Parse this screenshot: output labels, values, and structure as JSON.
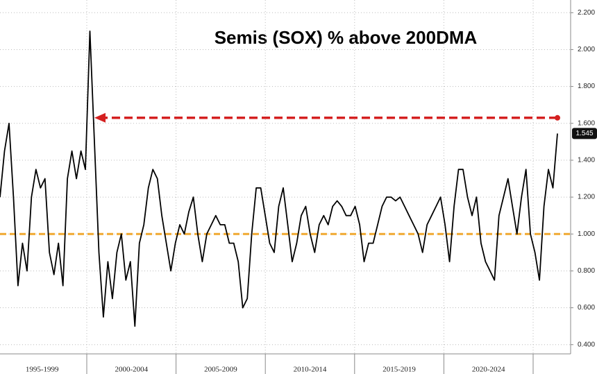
{
  "chart_data": {
    "type": "line",
    "title": "Semis (SOX) % above 200DMA",
    "period_labels": [
      "1995-1999",
      "2000-2004",
      "2005-2009",
      "2010-2014",
      "2015-2019",
      "2020-2024"
    ],
    "series": [
      {
        "color": "#000000",
        "values": [
          1.2,
          1.45,
          1.6,
          1.2,
          0.72,
          0.95,
          0.8,
          1.2,
          1.35,
          1.25,
          1.3,
          0.9,
          0.78,
          0.95,
          0.72,
          1.3,
          1.45,
          1.3,
          1.45,
          1.35,
          2.1,
          1.5,
          0.9,
          0.55,
          0.85,
          0.65,
          0.9,
          1.0,
          0.75,
          0.85,
          0.5,
          0.95,
          1.05,
          1.25,
          1.35,
          1.3,
          1.1,
          0.95,
          0.8,
          0.95,
          1.05,
          1.0,
          1.12,
          1.2,
          1.0,
          0.85,
          1.0,
          1.05,
          1.1,
          1.05,
          1.05,
          0.95,
          0.95,
          0.85,
          0.6,
          0.65,
          1.0,
          1.25,
          1.25,
          1.1,
          0.95,
          0.9,
          1.15,
          1.25,
          1.05,
          0.85,
          0.95,
          1.1,
          1.15,
          1.0,
          0.9,
          1.05,
          1.1,
          1.05,
          1.15,
          1.18,
          1.15,
          1.1,
          1.1,
          1.15,
          1.05,
          0.85,
          0.95,
          0.95,
          1.05,
          1.15,
          1.2,
          1.2,
          1.18,
          1.2,
          1.15,
          1.1,
          1.05,
          1.0,
          0.9,
          1.05,
          1.1,
          1.15,
          1.2,
          1.05,
          0.85,
          1.15,
          1.35,
          1.35,
          1.2,
          1.1,
          1.2,
          0.95,
          0.85,
          0.8,
          0.75,
          1.1,
          1.2,
          1.3,
          1.15,
          1.0,
          1.2,
          1.35,
          1.0,
          0.9,
          0.75,
          1.15,
          1.35,
          1.25,
          1.545
        ],
        "value_labels": {
          "124": "1.545"
        }
      }
    ],
    "reference_line": {
      "value": 1.0,
      "color": "#f0a830"
    },
    "arrow": {
      "value": 1.63,
      "color": "#d42020"
    },
    "ylim": [
      0.35,
      2.25
    ],
    "yticks": [
      {
        "value": 0.4,
        "label": "0.400"
      },
      {
        "value": 0.6,
        "label": "0.600"
      },
      {
        "value": 0.8,
        "label": "0.800"
      },
      {
        "value": 1.0,
        "label": "1.000"
      },
      {
        "value": 1.2,
        "label": "1.200"
      },
      {
        "value": 1.4,
        "label": "1.400"
      },
      {
        "value": 1.6,
        "label": "1.600"
      },
      {
        "value": 1.8,
        "label": "1.800"
      },
      {
        "value": 2.0,
        "label": "2.000"
      },
      {
        "value": 2.2,
        "label": "2.200"
      }
    ],
    "grid": true
  }
}
